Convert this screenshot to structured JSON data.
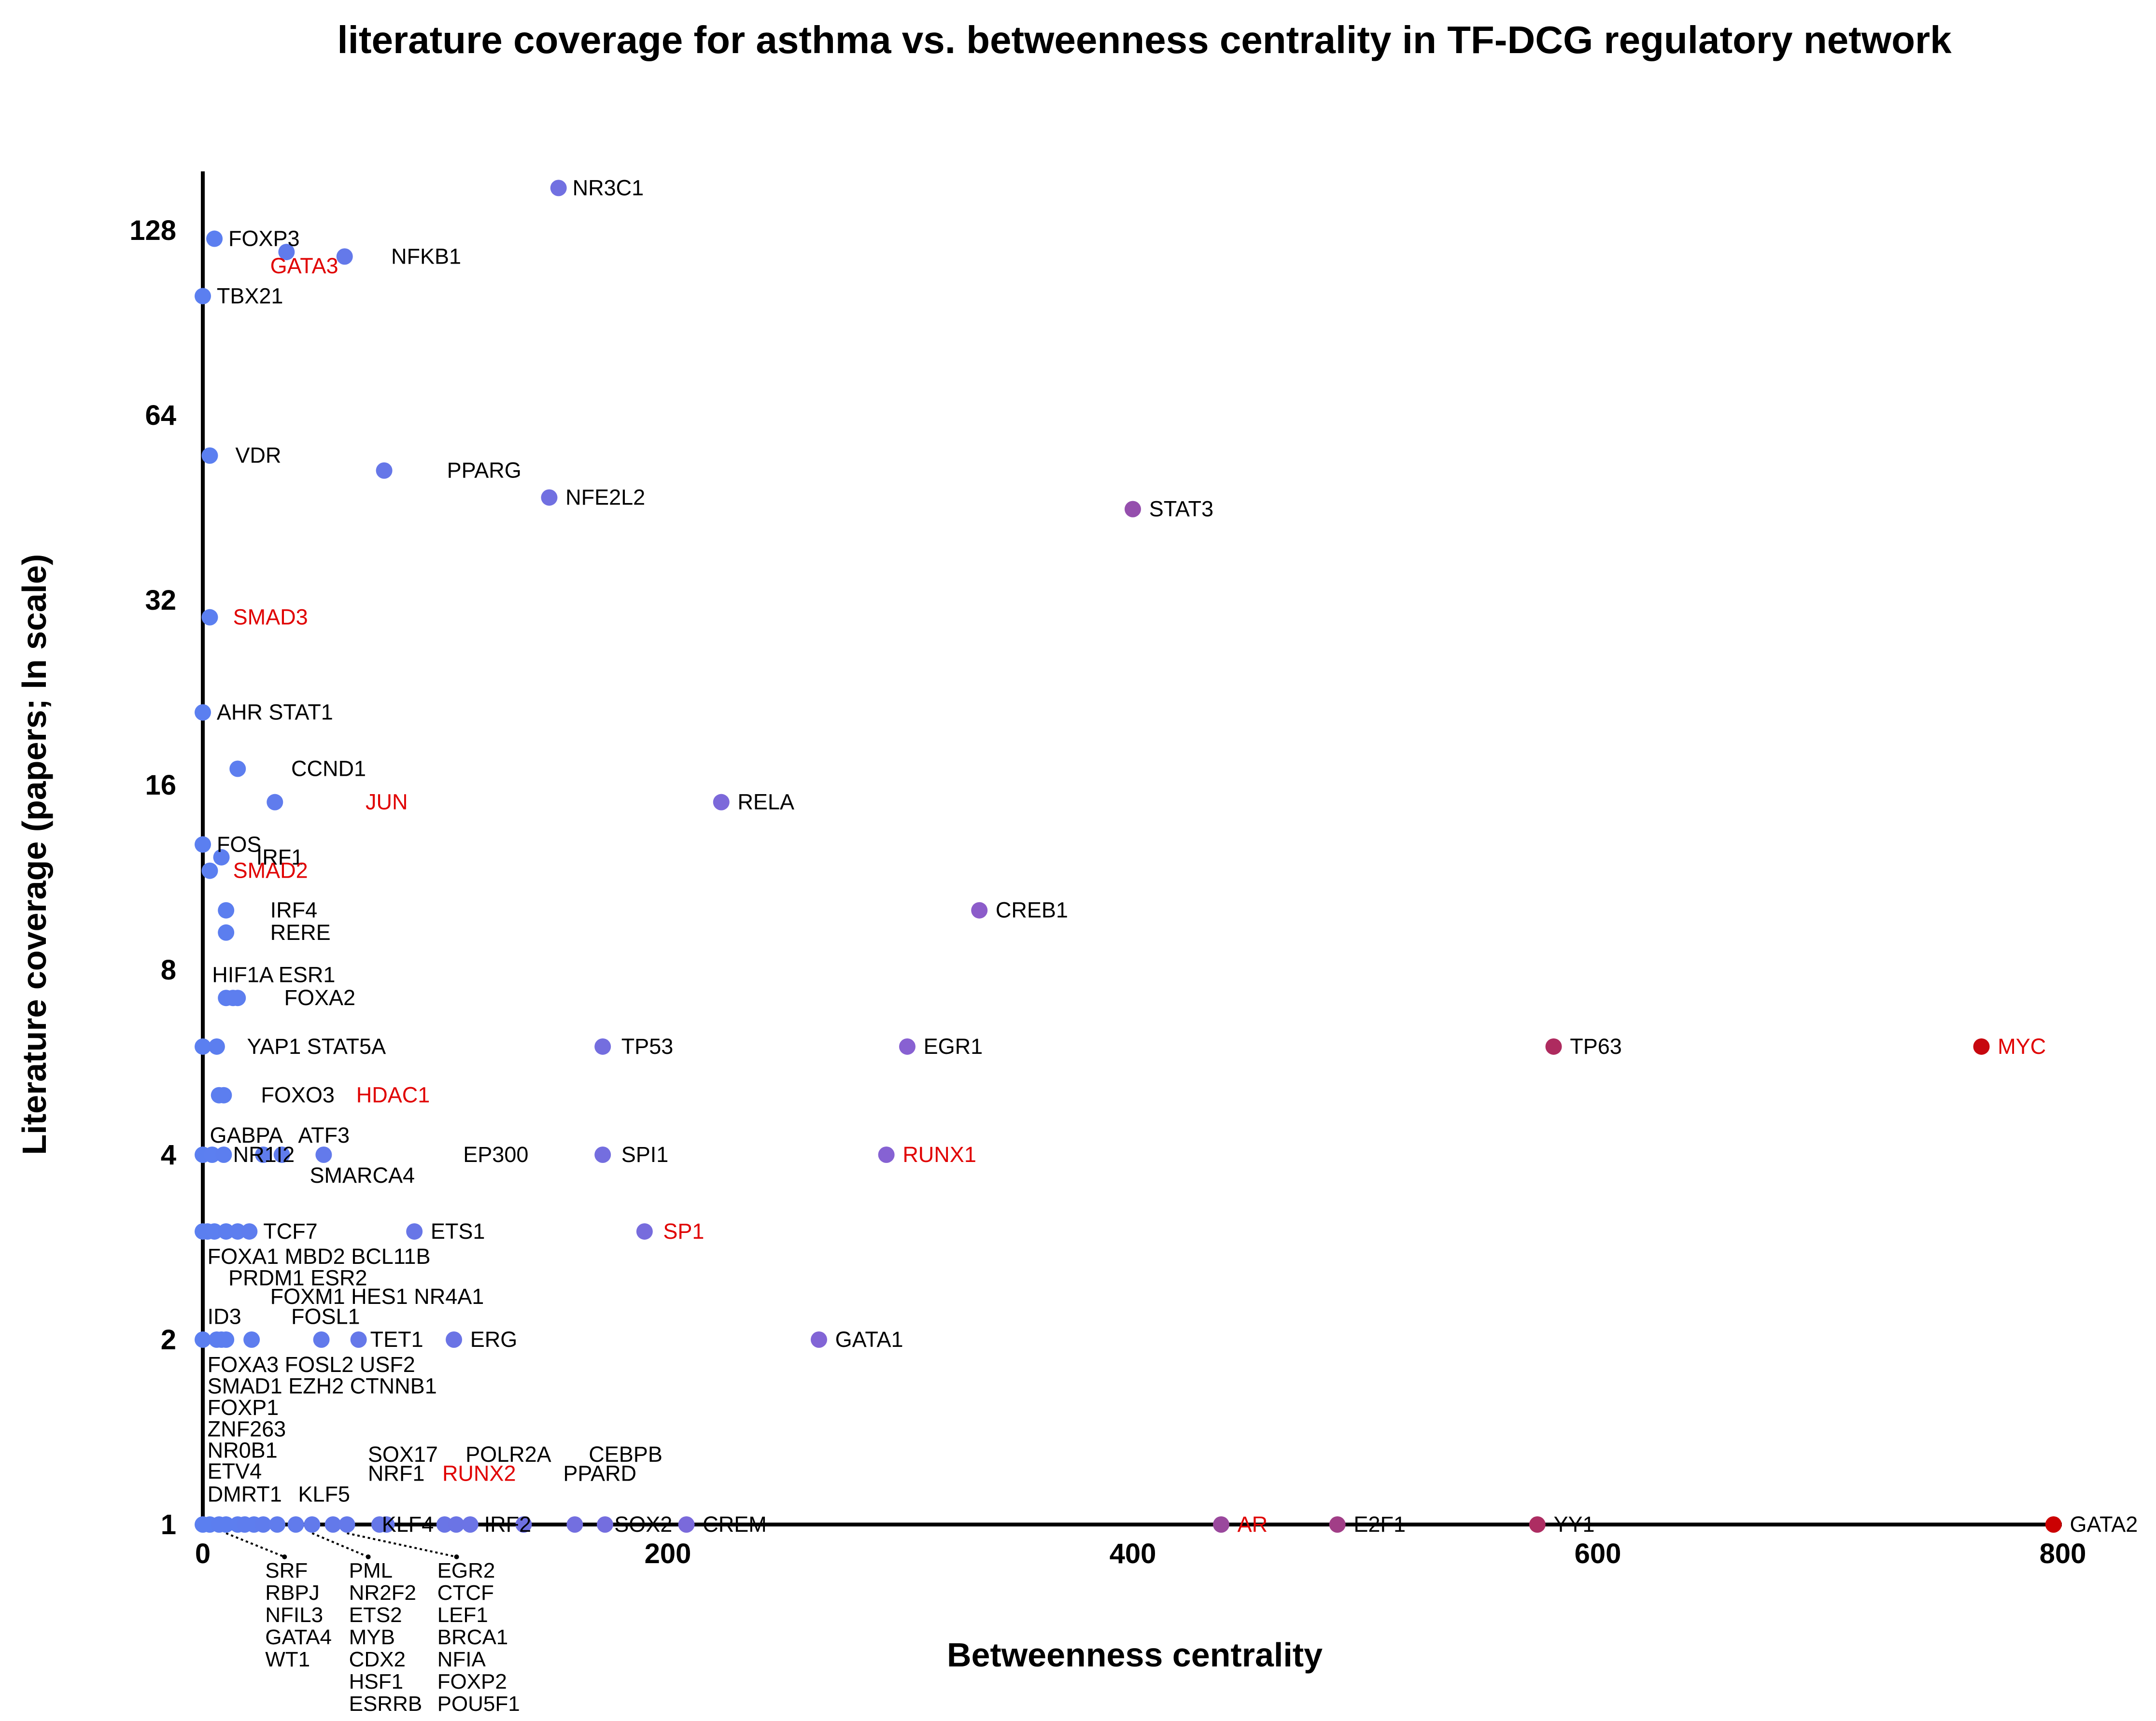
{
  "chart_data": {
    "type": "scatter",
    "title": "literature coverage for asthma vs. betweenness centrality in TF-DCG regulatory network",
    "xlabel": "Betweenness centrality",
    "ylabel": "Literature coverage (papers; ln scale)",
    "xlim": [
      0,
      800
    ],
    "ylim_log2": [
      0,
      7.3
    ],
    "x_ticks": [
      "0",
      "200",
      "400",
      "600",
      "800"
    ],
    "x_tick_values": [
      0,
      200,
      400,
      600,
      800
    ],
    "y_ticks": [
      "1",
      "2",
      "4",
      "8",
      "16",
      "32",
      "64",
      "128"
    ],
    "y_tick_values": [
      1,
      2,
      4,
      8,
      16,
      32,
      64,
      128
    ],
    "colors": {
      "low": "#5b7ff0",
      "mid": "#8a5fd0",
      "high": "#cc0000",
      "label_default": "#000000",
      "label_highlight": "#e00000"
    },
    "points": [
      {
        "x": 153,
        "y": 150
      },
      {
        "x": 5,
        "y": 124
      },
      {
        "x": 36,
        "y": 118
      },
      {
        "x": 61,
        "y": 116
      },
      {
        "x": 0,
        "y": 100
      },
      {
        "x": 3,
        "y": 55
      },
      {
        "x": 78,
        "y": 52
      },
      {
        "x": 149,
        "y": 47
      },
      {
        "x": 400,
        "y": 45
      },
      {
        "x": 3,
        "y": 30
      },
      {
        "x": 0,
        "y": 21
      },
      {
        "x": 15,
        "y": 17
      },
      {
        "x": 31,
        "y": 15
      },
      {
        "x": 223,
        "y": 15
      },
      {
        "x": 0,
        "y": 12.8
      },
      {
        "x": 8,
        "y": 12.2
      },
      {
        "x": 3,
        "y": 11.6
      },
      {
        "x": 10,
        "y": 10
      },
      {
        "x": 334,
        "y": 10
      },
      {
        "x": 10,
        "y": 9.2
      },
      {
        "x": 10,
        "y": 7.2
      },
      {
        "x": 13,
        "y": 7.2
      },
      {
        "x": 15,
        "y": 7.2
      },
      {
        "x": 0,
        "y": 6
      },
      {
        "x": 6,
        "y": 6
      },
      {
        "x": 172,
        "y": 6
      },
      {
        "x": 303,
        "y": 6
      },
      {
        "x": 581,
        "y": 6
      },
      {
        "x": 765,
        "y": 6
      },
      {
        "x": 7,
        "y": 5
      },
      {
        "x": 9,
        "y": 5
      },
      {
        "x": 0,
        "y": 4
      },
      {
        "x": 4,
        "y": 4
      },
      {
        "x": 9,
        "y": 4
      },
      {
        "x": 26,
        "y": 4
      },
      {
        "x": 34,
        "y": 4
      },
      {
        "x": 52,
        "y": 4
      },
      {
        "x": 172,
        "y": 4
      },
      {
        "x": 294,
        "y": 4
      },
      {
        "x": 0,
        "y": 3
      },
      {
        "x": 2,
        "y": 3
      },
      {
        "x": 5,
        "y": 3
      },
      {
        "x": 10,
        "y": 3
      },
      {
        "x": 15,
        "y": 3
      },
      {
        "x": 20,
        "y": 3
      },
      {
        "x": 91,
        "y": 3
      },
      {
        "x": 190,
        "y": 3
      },
      {
        "x": 0,
        "y": 2
      },
      {
        "x": 6,
        "y": 2
      },
      {
        "x": 8,
        "y": 2
      },
      {
        "x": 10,
        "y": 2
      },
      {
        "x": 21,
        "y": 2
      },
      {
        "x": 51,
        "y": 2
      },
      {
        "x": 67,
        "y": 2
      },
      {
        "x": 108,
        "y": 2
      },
      {
        "x": 265,
        "y": 2
      },
      {
        "x": 0,
        "y": 1
      },
      {
        "x": 3,
        "y": 1
      },
      {
        "x": 7,
        "y": 1
      },
      {
        "x": 10,
        "y": 1
      },
      {
        "x": 15,
        "y": 1
      },
      {
        "x": 18,
        "y": 1
      },
      {
        "x": 22,
        "y": 1
      },
      {
        "x": 26,
        "y": 1
      },
      {
        "x": 32,
        "y": 1
      },
      {
        "x": 40,
        "y": 1
      },
      {
        "x": 47,
        "y": 1
      },
      {
        "x": 56,
        "y": 1
      },
      {
        "x": 62,
        "y": 1
      },
      {
        "x": 76,
        "y": 1
      },
      {
        "x": 79,
        "y": 1
      },
      {
        "x": 104,
        "y": 1
      },
      {
        "x": 109,
        "y": 1
      },
      {
        "x": 115,
        "y": 1
      },
      {
        "x": 138,
        "y": 1
      },
      {
        "x": 160,
        "y": 1
      },
      {
        "x": 173,
        "y": 1
      },
      {
        "x": 208,
        "y": 1
      },
      {
        "x": 438,
        "y": 1
      },
      {
        "x": 488,
        "y": 1
      },
      {
        "x": 574,
        "y": 1
      },
      {
        "x": 796,
        "y": 1
      }
    ],
    "labels": [
      {
        "text": "NR3C1",
        "x": 159,
        "y": 150,
        "hl": false
      },
      {
        "text": "FOXP3",
        "x": 11,
        "y": 124,
        "hl": false
      },
      {
        "text": "GATA3",
        "x": 29,
        "y": 112,
        "hl": true
      },
      {
        "text": "NFKB1",
        "x": 81,
        "y": 116,
        "hl": false
      },
      {
        "text": "TBX21",
        "x": 6,
        "y": 100,
        "hl": false
      },
      {
        "text": "VDR",
        "x": 14,
        "y": 55,
        "hl": false
      },
      {
        "text": "PPARG",
        "x": 105,
        "y": 52,
        "hl": false
      },
      {
        "text": "NFE2L2",
        "x": 156,
        "y": 47,
        "hl": false
      },
      {
        "text": "STAT3",
        "x": 407,
        "y": 45,
        "hl": false
      },
      {
        "text": "SMAD3",
        "x": 13,
        "y": 30,
        "hl": true
      },
      {
        "text": "AHR STAT1",
        "x": 6,
        "y": 21,
        "hl": false
      },
      {
        "text": "CCND1",
        "x": 38,
        "y": 17,
        "hl": false
      },
      {
        "text": "JUN",
        "x": 70,
        "y": 15,
        "hl": true
      },
      {
        "text": "RELA",
        "x": 230,
        "y": 15,
        "hl": false
      },
      {
        "text": "FOS",
        "x": 6,
        "y": 12.8,
        "hl": false
      },
      {
        "text": "IRF1",
        "x": 23,
        "y": 12.2,
        "hl": false
      },
      {
        "text": "SMAD2",
        "x": 13,
        "y": 11.6,
        "hl": true
      },
      {
        "text": "IRF4",
        "x": 29,
        "y": 10,
        "hl": false
      },
      {
        "text": "CREB1",
        "x": 341,
        "y": 10,
        "hl": false
      },
      {
        "text": "RERE",
        "x": 29,
        "y": 9.2,
        "hl": false
      },
      {
        "text": "HIF1A ESR1",
        "x": 4,
        "y": 7.85,
        "hl": false
      },
      {
        "text": "FOXA2",
        "x": 35,
        "y": 7.2,
        "hl": false
      },
      {
        "text": "YAP1 STAT5A",
        "x": 19,
        "y": 6,
        "hl": false
      },
      {
        "text": "TP53",
        "x": 180,
        "y": 6,
        "hl": false
      },
      {
        "text": "EGR1",
        "x": 310,
        "y": 6,
        "hl": false
      },
      {
        "text": "TP63",
        "x": 588,
        "y": 6,
        "hl": false
      },
      {
        "text": "MYC",
        "x": 772,
        "y": 6,
        "hl": true
      },
      {
        "text": "FOXO3",
        "x": 25,
        "y": 5,
        "hl": false
      },
      {
        "text": "HDAC1",
        "x": 66,
        "y": 5,
        "hl": true
      },
      {
        "text": "GABPA",
        "x": 3,
        "y": 4.3,
        "hl": false
      },
      {
        "text": "ATF3",
        "x": 41,
        "y": 4.3,
        "hl": false
      },
      {
        "text": "NR1I2",
        "x": 13,
        "y": 4,
        "hl": false
      },
      {
        "text": "SMARCA4",
        "x": 46,
        "y": 3.7,
        "hl": false
      },
      {
        "text": "EP300",
        "x": 112,
        "y": 4,
        "hl": false
      },
      {
        "text": "SPI1",
        "x": 180,
        "y": 4,
        "hl": false
      },
      {
        "text": "RUNX1",
        "x": 301,
        "y": 4,
        "hl": true
      },
      {
        "text": "TCF7",
        "x": 26,
        "y": 3,
        "hl": false
      },
      {
        "text": "ETS1",
        "x": 98,
        "y": 3,
        "hl": false
      },
      {
        "text": "SP1",
        "x": 198,
        "y": 3,
        "hl": true
      },
      {
        "text": "FOXA1 MBD2 BCL11B",
        "x": 2,
        "y": 2.73,
        "hl": false
      },
      {
        "text": "PRDM1 ESR2",
        "x": 11,
        "y": 2.52,
        "hl": false
      },
      {
        "text": "FOXM1 HES1 NR4A1",
        "x": 29,
        "y": 2.35,
        "hl": false
      },
      {
        "text": "FOSL1",
        "x": 38,
        "y": 2.18,
        "hl": false
      },
      {
        "text": "ID3",
        "x": 2,
        "y": 2.18,
        "hl": false
      },
      {
        "text": "TET1",
        "x": 72,
        "y": 2,
        "hl": false
      },
      {
        "text": "ERG",
        "x": 115,
        "y": 2,
        "hl": false
      },
      {
        "text": "GATA1",
        "x": 272,
        "y": 2,
        "hl": false
      },
      {
        "text": "FOXA3 FOSL2 USF2",
        "x": 2,
        "y": 1.82,
        "hl": false
      },
      {
        "text": "SMAD1 EZH2 CTNNB1",
        "x": 2,
        "y": 1.68,
        "hl": false
      },
      {
        "text": "FOXP1",
        "x": 2,
        "y": 1.55,
        "hl": false
      },
      {
        "text": "ZNF263",
        "x": 2,
        "y": 1.43,
        "hl": false
      },
      {
        "text": "NR0B1",
        "x": 2,
        "y": 1.32,
        "hl": false
      },
      {
        "text": "ETV4",
        "x": 2,
        "y": 1.22,
        "hl": false
      },
      {
        "text": "DMRT1",
        "x": 2,
        "y": 1.12,
        "hl": false
      },
      {
        "text": "KLF5",
        "x": 41,
        "y": 1.12,
        "hl": false
      },
      {
        "text": "SOX17",
        "x": 71,
        "y": 1.3,
        "hl": false
      },
      {
        "text": "POLR2A",
        "x": 113,
        "y": 1.3,
        "hl": false
      },
      {
        "text": "CEBPB",
        "x": 166,
        "y": 1.3,
        "hl": false
      },
      {
        "text": "NRF1",
        "x": 71,
        "y": 1.21,
        "hl": false
      },
      {
        "text": "RUNX2",
        "x": 103,
        "y": 1.21,
        "hl": true
      },
      {
        "text": "PPARD",
        "x": 155,
        "y": 1.21,
        "hl": false
      },
      {
        "text": "KLF4",
        "x": 77,
        "y": 1,
        "hl": false
      },
      {
        "text": "IRF2",
        "x": 121,
        "y": 1,
        "hl": false
      },
      {
        "text": "SOX2",
        "x": 177,
        "y": 1,
        "hl": false
      },
      {
        "text": "CREM",
        "x": 215,
        "y": 1,
        "hl": false
      },
      {
        "text": "AR",
        "x": 445,
        "y": 1,
        "hl": true
      },
      {
        "text": "E2F1",
        "x": 495,
        "y": 1,
        "hl": false
      },
      {
        "text": "YY1",
        "x": 581,
        "y": 1,
        "hl": false
      },
      {
        "text": "GATA2",
        "x": 803,
        "y": 1,
        "hl": false
      }
    ],
    "collapsed_lists": [
      {
        "anchor_x": 10,
        "leader_end_x": 31,
        "items": [
          "SRF",
          "RBPJ",
          "NFIL3",
          "GATA4",
          "WT1"
        ]
      },
      {
        "anchor_x": 47,
        "leader_end_x": 67,
        "items": [
          "PML",
          "NR2F2",
          "ETS2",
          "MYB",
          "CDX2",
          "HSF1",
          "ESRRB"
        ]
      },
      {
        "anchor_x": 62,
        "leader_end_x": 105,
        "items": [
          "EGR2",
          "CTCF",
          "LEF1",
          "BRCA1",
          "NFIA",
          "FOXP2",
          "POU5F1"
        ]
      }
    ]
  }
}
